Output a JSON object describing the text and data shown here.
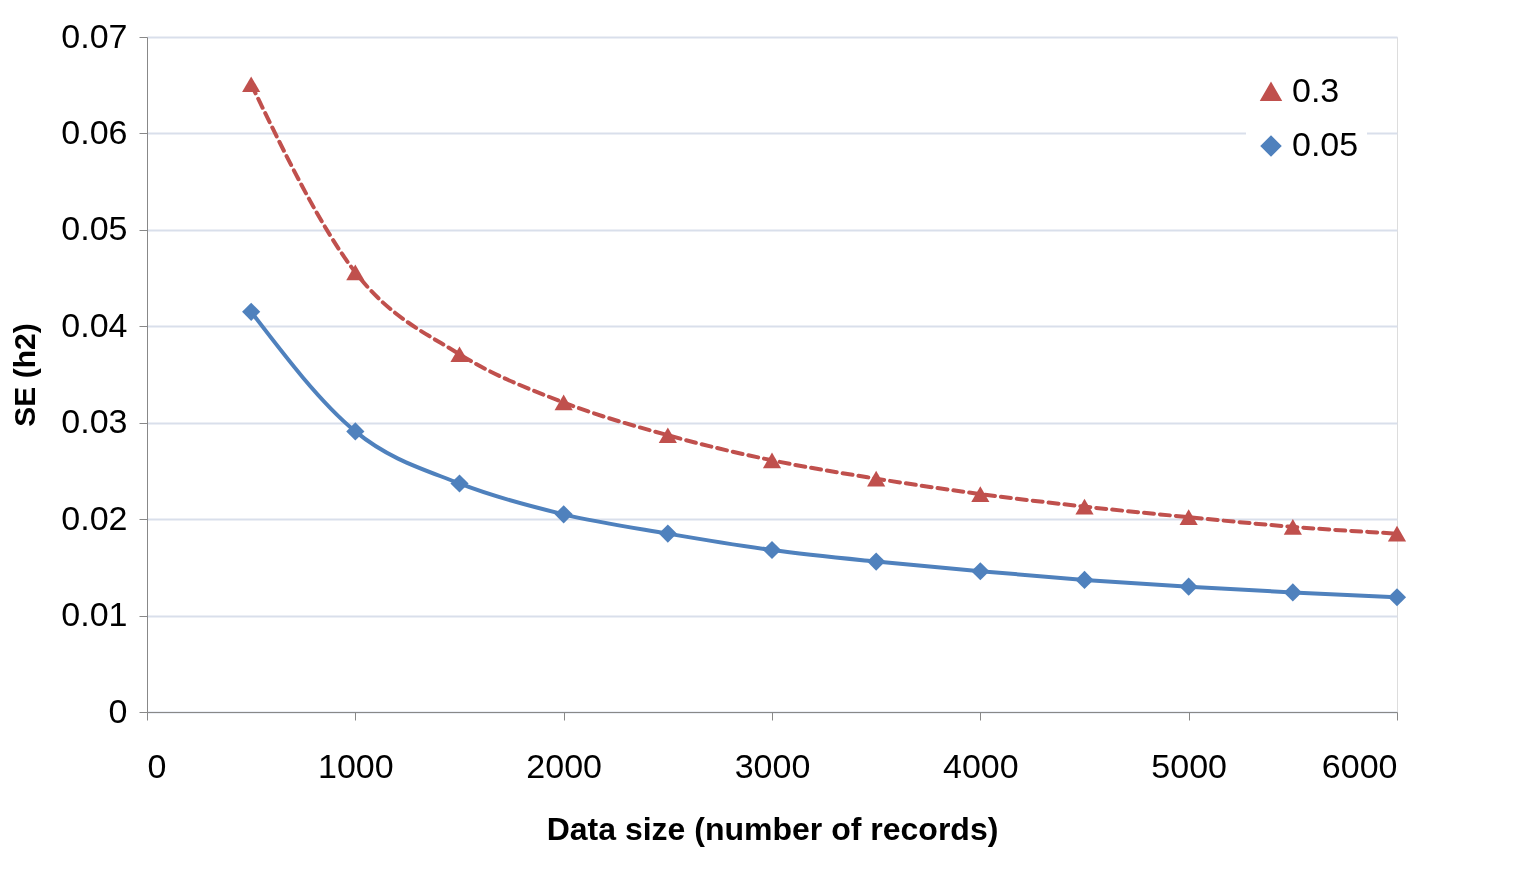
{
  "chart_data": {
    "type": "line",
    "xlabel": "Data size (number of records)",
    "ylabel": "SE (h2)",
    "x": [
      500,
      1000,
      1500,
      2000,
      2500,
      3000,
      3500,
      4000,
      4500,
      5000,
      5500,
      6000
    ],
    "series": [
      {
        "name": "0.3",
        "color": "#c0504d",
        "marker": "triangle",
        "line_style": "dashed",
        "values": [
          0.0651,
          0.0456,
          0.0371,
          0.0321,
          0.0287,
          0.0261,
          0.0242,
          0.0226,
          0.0213,
          0.0202,
          0.0192,
          0.0185
        ]
      },
      {
        "name": "0.05",
        "color": "#4f81bd",
        "marker": "diamond",
        "line_style": "solid",
        "values": [
          0.0415,
          0.0291,
          0.0237,
          0.0205,
          0.0185,
          0.0168,
          0.0156,
          0.0146,
          0.0137,
          0.013,
          0.0124,
          0.0119
        ]
      }
    ],
    "xlim": [
      0,
      6000
    ],
    "xticks": [
      0,
      1000,
      2000,
      3000,
      4000,
      5000,
      6000
    ],
    "ylim": [
      0,
      0.07
    ],
    "yticks": [
      0,
      0.01,
      0.02,
      0.03,
      0.04,
      0.05,
      0.06,
      0.07
    ],
    "grid": "y",
    "legend": "top right"
  }
}
